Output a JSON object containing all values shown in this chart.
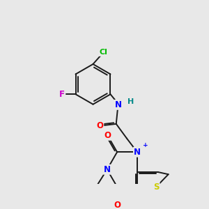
{
  "bg_color": "#e8e8e8",
  "bond_color": "#1a1a1a",
  "atom_colors": {
    "Cl": "#00bb00",
    "F": "#cc00cc",
    "N": "#0000ff",
    "O": "#ff0000",
    "S": "#cccc00",
    "H": "#008888",
    "C": "#1a1a1a"
  },
  "figsize": [
    3.0,
    3.0
  ],
  "dpi": 100
}
